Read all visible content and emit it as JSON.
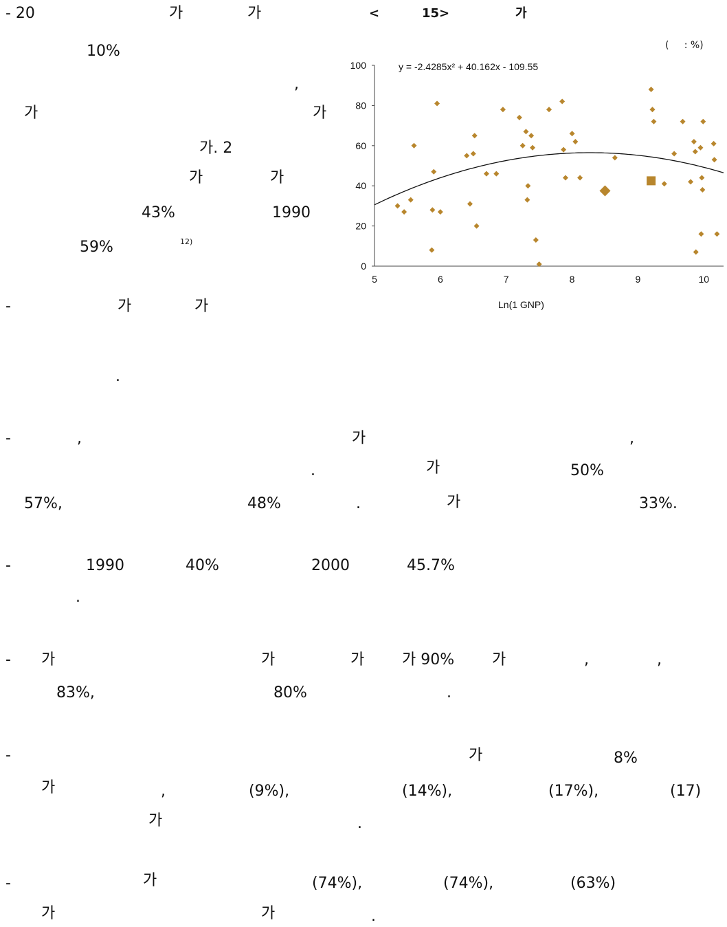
{
  "left_column": {
    "line1": {
      "dash": "- 20",
      "ga1": "가",
      "ga2": "가"
    },
    "line2": {
      "pct": "10%"
    },
    "line3": {
      "comma": ","
    },
    "line4": {
      "ga1": "가",
      "ga2": "가"
    },
    "line5": {
      "text": "가. 2"
    },
    "line6": {
      "ga1": "가",
      "ga2": "가"
    },
    "line7": {
      "pct": "43%",
      "year": "1990"
    },
    "line8": {
      "pct": "59%",
      "footnote": "12)"
    }
  },
  "figure": {
    "caption": {
      "lt": "<",
      "num": "15>",
      "ga": "가"
    },
    "unit": "(     : %)"
  },
  "paragraphs": {
    "p1": {
      "dash": "-",
      "ga1": "가",
      "ga2": "가",
      "period": "."
    },
    "p2": {
      "dash": "-",
      "comma1": ",",
      "ga1": "가",
      "comma2": ",",
      "period1": ".",
      "ga2": "가",
      "pct1": "50%",
      "pct2": "57%,",
      "pct3": "48%",
      "period2": ".",
      "ga3": "가",
      "pct4": "33%."
    },
    "p3": {
      "dash": "-",
      "year1": "1990",
      "pct1": "40%",
      "year2": "2000",
      "pct2": "45.7%",
      "period": "."
    },
    "p4": {
      "dash": "-",
      "ga1": "가",
      "ga2": "가",
      "ga3": "가",
      "ga4": "가 90%",
      "ga5": "가",
      "comma1": ",",
      "comma2": ",",
      "pct1": "83%,",
      "pct2": "80%",
      "period": "."
    },
    "p5": {
      "dash": "-",
      "ga1": "가",
      "pct1": "8%",
      "ga2": "가",
      "comma": ",",
      "v1": "(9%),",
      "v2": "(14%),",
      "v3": "(17%),",
      "v4": "(17)",
      "ga3": "가",
      "period": "."
    },
    "p6": {
      "dash": "-",
      "ga1": "가",
      "v1": "(74%),",
      "v2": "(74%),",
      "v3": "(63%)",
      "ga2": "가",
      "ga3": "가",
      "period": "."
    }
  },
  "chart_data": {
    "type": "scatter",
    "equation": "y = -2.4285x² + 40.162x - 109.55",
    "xlabel": "Ln(1      GNP)",
    "xlim": [
      5.0,
      10.3
    ],
    "ylim": [
      0,
      100
    ],
    "xticks": [
      5,
      6,
      7,
      8,
      9,
      10
    ],
    "yticks": [
      0,
      20,
      40,
      60,
      80,
      100
    ],
    "marker_color": "#b8862d",
    "trend": {
      "a": -2.4285,
      "b": 40.162,
      "c": -109.55
    },
    "points": [
      [
        5.35,
        30
      ],
      [
        5.45,
        27
      ],
      [
        5.55,
        33
      ],
      [
        5.6,
        60
      ],
      [
        5.9,
        47
      ],
      [
        5.88,
        28
      ],
      [
        5.87,
        8
      ],
      [
        5.95,
        81
      ],
      [
        6.0,
        27
      ],
      [
        6.4,
        55
      ],
      [
        6.45,
        31
      ],
      [
        6.5,
        56
      ],
      [
        6.52,
        65
      ],
      [
        6.55,
        20
      ],
      [
        6.7,
        46
      ],
      [
        6.85,
        46
      ],
      [
        6.95,
        78
      ],
      [
        7.2,
        74
      ],
      [
        7.25,
        60
      ],
      [
        7.3,
        67
      ],
      [
        7.32,
        33
      ],
      [
        7.33,
        40
      ],
      [
        7.38,
        65
      ],
      [
        7.4,
        59
      ],
      [
        7.45,
        13
      ],
      [
        7.5,
        1
      ],
      [
        7.65,
        78
      ],
      [
        7.85,
        82
      ],
      [
        7.87,
        58
      ],
      [
        7.9,
        44
      ],
      [
        8.0,
        66
      ],
      [
        8.05,
        62
      ],
      [
        8.12,
        44
      ],
      [
        8.65,
        54
      ],
      [
        9.2,
        88
      ],
      [
        9.22,
        78
      ],
      [
        9.24,
        72
      ],
      [
        9.4,
        41
      ],
      [
        9.55,
        56
      ],
      [
        9.68,
        72
      ],
      [
        9.8,
        42
      ],
      [
        9.85,
        62
      ],
      [
        9.87,
        57
      ],
      [
        9.88,
        7
      ],
      [
        9.95,
        59
      ],
      [
        9.97,
        44
      ],
      [
        9.98,
        38
      ],
      [
        9.99,
        72
      ],
      [
        9.96,
        16
      ],
      [
        10.15,
        61
      ],
      [
        10.16,
        53
      ],
      [
        10.2,
        16
      ]
    ],
    "highlights": [
      {
        "shape": "diamond",
        "x": 8.5,
        "y": 37.5
      },
      {
        "shape": "square",
        "x": 9.2,
        "y": 42.5
      }
    ]
  }
}
